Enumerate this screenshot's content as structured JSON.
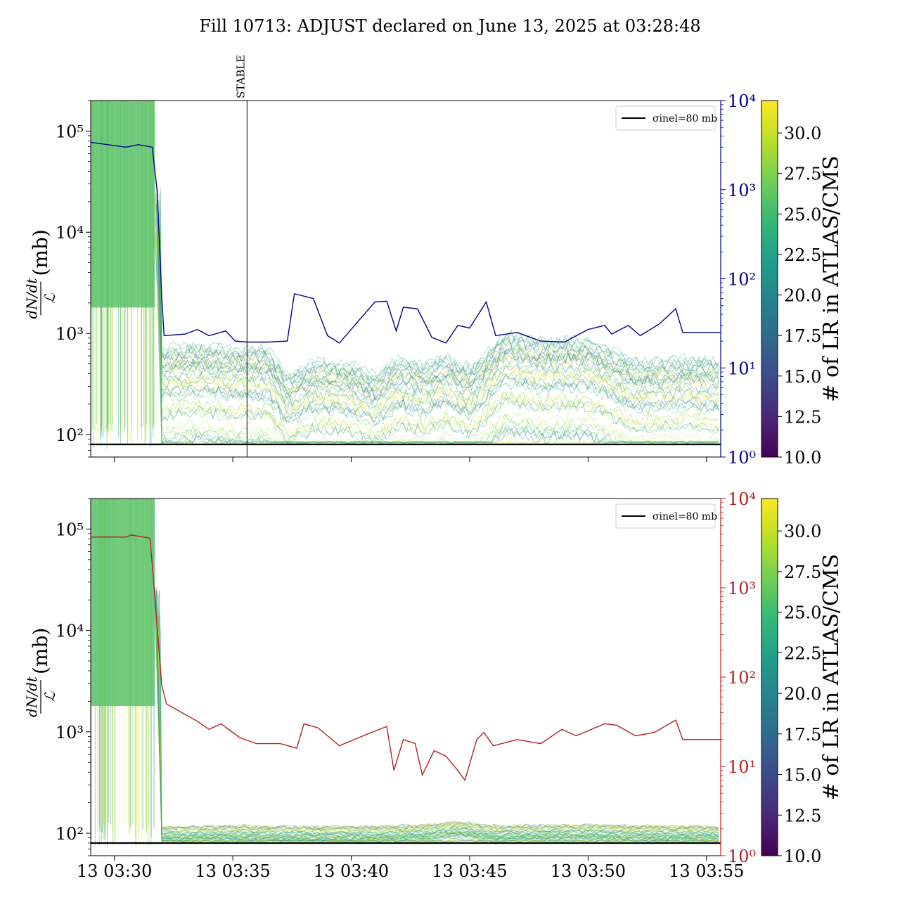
{
  "figure": {
    "title": "Fill 10713: ADJUST declared on June 13, 2025 at 03:28:48"
  },
  "colors": {
    "top_right_series": "#00008b",
    "bottom_right_series": "#b22222",
    "reference_line": "#000000",
    "viridis": [
      "#440154",
      "#482878",
      "#3e4989",
      "#31688e",
      "#26828e",
      "#1f9e89",
      "#35b779",
      "#6ece58",
      "#b5de2b",
      "#fde725"
    ]
  },
  "chart_data": [
    {
      "type": "line",
      "panel": "top",
      "ylabel": "(mb)",
      "ylabel_fraction": {
        "numerator": "dN/dt",
        "denominator": "ℒ"
      },
      "y_scale": "log",
      "ylim": [
        60,
        200000
      ],
      "y_ticks": [
        "10²",
        "10³",
        "10⁴",
        "10⁵"
      ],
      "x_ticks": [
        "13 03:30",
        "13 03:35",
        "13 03:40",
        "13 03:45",
        "13 03:50",
        "13 03:55"
      ],
      "xlim_minutes": [
        29.0,
        55.6
      ],
      "xtick_labels_visible": false,
      "vline": {
        "x_minutes": 35.6,
        "label": "STABLE"
      },
      "reference_line": {
        "y": 80,
        "legend": "σinel=80 mb"
      },
      "legend_position": "top-right",
      "right_axis": {
        "scale": "log",
        "ylim": [
          1,
          10000
        ],
        "ticks": [
          "10⁰",
          "10¹",
          "10²",
          "10³",
          "10⁴"
        ],
        "color": "#00008b"
      },
      "right_series": [
        [
          29.0,
          3400
        ],
        [
          30.5,
          3000
        ],
        [
          31.0,
          3200
        ],
        [
          31.6,
          3000
        ],
        [
          31.8,
          1000
        ],
        [
          31.95,
          130
        ],
        [
          32.0,
          60
        ],
        [
          32.1,
          23
        ],
        [
          33.0,
          24
        ],
        [
          33.5,
          27
        ],
        [
          34.0,
          23
        ],
        [
          34.7,
          26
        ],
        [
          35.1,
          20
        ],
        [
          35.6,
          19.5
        ],
        [
          36.5,
          19.5
        ],
        [
          37.3,
          20
        ],
        [
          37.6,
          68
        ],
        [
          38.4,
          60
        ],
        [
          39.0,
          23
        ],
        [
          39.5,
          19
        ],
        [
          41.0,
          55
        ],
        [
          41.5,
          56
        ],
        [
          41.9,
          26
        ],
        [
          42.2,
          48
        ],
        [
          42.8,
          46
        ],
        [
          43.4,
          22
        ],
        [
          44.0,
          19
        ],
        [
          44.5,
          30
        ],
        [
          45.0,
          28
        ],
        [
          45.7,
          55
        ],
        [
          46.1,
          23
        ],
        [
          47.0,
          25
        ],
        [
          48.0,
          20
        ],
        [
          49.0,
          19.5
        ],
        [
          50.0,
          27
        ],
        [
          50.7,
          30
        ],
        [
          51.0,
          24
        ],
        [
          51.7,
          30
        ],
        [
          52.2,
          23
        ],
        [
          53.0,
          31
        ],
        [
          53.7,
          46
        ],
        [
          54.0,
          25
        ],
        [
          55.0,
          25
        ],
        [
          55.6,
          25
        ]
      ],
      "band_median": [
        [
          32.0,
          200
        ],
        [
          33.5,
          220
        ],
        [
          35.0,
          200
        ],
        [
          36.5,
          200
        ],
        [
          37.3,
          110
        ],
        [
          38.5,
          150
        ],
        [
          40.0,
          140
        ],
        [
          41.0,
          110
        ],
        [
          42.0,
          160
        ],
        [
          43.0,
          140
        ],
        [
          44.0,
          170
        ],
        [
          45.0,
          130
        ],
        [
          46.5,
          280
        ],
        [
          48.0,
          240
        ],
        [
          50.0,
          250
        ],
        [
          52.0,
          150
        ],
        [
          54.0,
          160
        ],
        [
          55.5,
          150
        ]
      ],
      "colorbar": {
        "label": "# of LR in ATLAS/CMS",
        "range": [
          10.0,
          32.0
        ],
        "ticks": [
          "10.0",
          "12.5",
          "15.0",
          "17.5",
          "20.0",
          "22.5",
          "25.0",
          "27.5",
          "30.0"
        ]
      }
    },
    {
      "type": "line",
      "panel": "bottom",
      "ylabel": "(mb)",
      "ylabel_fraction": {
        "numerator": "dN/dt",
        "denominator": "ℒ"
      },
      "y_scale": "log",
      "ylim": [
        60,
        200000
      ],
      "y_ticks": [
        "10²",
        "10³",
        "10⁴",
        "10⁵"
      ],
      "x_ticks": [
        "13 03:30",
        "13 03:35",
        "13 03:40",
        "13 03:45",
        "13 03:50",
        "13 03:55"
      ],
      "xlim_minutes": [
        29.0,
        55.6
      ],
      "reference_line": {
        "y": 80,
        "legend": "σinel=80 mb"
      },
      "legend_position": "top-right",
      "right_axis": {
        "scale": "log",
        "ylim": [
          1,
          10000
        ],
        "ticks": [
          "10⁰",
          "10¹",
          "10²",
          "10³",
          "10⁴"
        ],
        "color": "#b22222"
      },
      "right_series": [
        [
          29.0,
          3700
        ],
        [
          30.5,
          3700
        ],
        [
          30.7,
          3900
        ],
        [
          31.5,
          3600
        ],
        [
          31.6,
          1800
        ],
        [
          32.0,
          80
        ],
        [
          32.2,
          50
        ],
        [
          33.0,
          38
        ],
        [
          33.5,
          32
        ],
        [
          34.0,
          26
        ],
        [
          34.5,
          30
        ],
        [
          35.3,
          21
        ],
        [
          36.0,
          18
        ],
        [
          37.0,
          18
        ],
        [
          37.7,
          16
        ],
        [
          38.0,
          30
        ],
        [
          38.6,
          27
        ],
        [
          39.0,
          22
        ],
        [
          39.5,
          17
        ],
        [
          40.5,
          22
        ],
        [
          41.5,
          28
        ],
        [
          41.8,
          9
        ],
        [
          42.2,
          20
        ],
        [
          42.7,
          18
        ],
        [
          43.0,
          8
        ],
        [
          43.5,
          15
        ],
        [
          44.0,
          13
        ],
        [
          44.5,
          9
        ],
        [
          44.8,
          7
        ],
        [
          45.3,
          20
        ],
        [
          45.6,
          24
        ],
        [
          46.0,
          17
        ],
        [
          47.0,
          20
        ],
        [
          48.0,
          18
        ],
        [
          48.9,
          26
        ],
        [
          49.5,
          22
        ],
        [
          50.7,
          30
        ],
        [
          51.2,
          29
        ],
        [
          52.0,
          22
        ],
        [
          52.8,
          24
        ],
        [
          53.7,
          33
        ],
        [
          54.0,
          20
        ],
        [
          55.0,
          20
        ],
        [
          55.6,
          20
        ]
      ],
      "band_median": [
        [
          32.0,
          90
        ],
        [
          35.0,
          92
        ],
        [
          38.0,
          90
        ],
        [
          41.0,
          91
        ],
        [
          43.0,
          93
        ],
        [
          44.5,
          100
        ],
        [
          46.0,
          92
        ],
        [
          48.0,
          93
        ],
        [
          50.0,
          94
        ],
        [
          52.0,
          92
        ],
        [
          55.5,
          91
        ]
      ],
      "colorbar": {
        "label": "# of LR in ATLAS/CMS",
        "range": [
          10.0,
          32.0
        ],
        "ticks": [
          "10.0",
          "12.5",
          "15.0",
          "17.5",
          "20.0",
          "22.5",
          "25.0",
          "27.5",
          "30.0"
        ]
      }
    }
  ]
}
